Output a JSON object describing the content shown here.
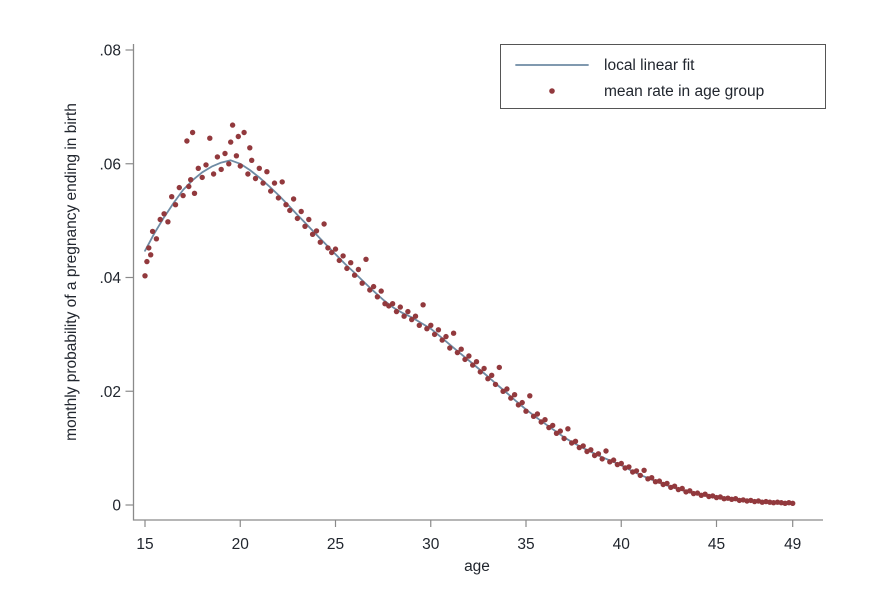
{
  "figure": {
    "background": "#ffffff",
    "axis_color": "#8a8a8a",
    "text_color": "#21262e",
    "legend_border_color": "#555555",
    "line_color": "#6e8ba4",
    "dot_color": "#92393d"
  },
  "chart_data": {
    "type": "scatter",
    "title": "",
    "xlabel": "age",
    "ylabel": "monthly probability of a pregnancy ending in birth",
    "xlim": [
      15,
      49
    ],
    "ylim": [
      0,
      0.08
    ],
    "x_ticks": [
      15,
      20,
      25,
      30,
      35,
      40,
      45,
      49
    ],
    "y_ticks": [
      0,
      0.02,
      0.04,
      0.06,
      0.08
    ],
    "y_tick_labels": [
      "0",
      ".02",
      ".04",
      ".06",
      ".08"
    ],
    "grid": "off",
    "legend_position": "top-right",
    "series": [
      {
        "name": "local linear fit",
        "type": "line",
        "color": "#6e8ba4",
        "points": [
          [
            15,
            0.0447
          ],
          [
            15.5,
            0.0478
          ],
          [
            16,
            0.0506
          ],
          [
            16.5,
            0.0531
          ],
          [
            17,
            0.0554
          ],
          [
            17.5,
            0.0571
          ],
          [
            18,
            0.0585
          ],
          [
            18.5,
            0.0595
          ],
          [
            19,
            0.0602
          ],
          [
            19.5,
            0.0606
          ],
          [
            20,
            0.06
          ],
          [
            20.5,
            0.0589
          ],
          [
            21,
            0.0576
          ],
          [
            21.5,
            0.0561
          ],
          [
            22,
            0.0545
          ],
          [
            22.5,
            0.0528
          ],
          [
            23,
            0.051
          ],
          [
            23.5,
            0.0493
          ],
          [
            24,
            0.0475
          ],
          [
            24.5,
            0.0458
          ],
          [
            25,
            0.0441
          ],
          [
            25.5,
            0.0424
          ],
          [
            26,
            0.0408
          ],
          [
            26.5,
            0.0392
          ],
          [
            27,
            0.0376
          ],
          [
            27.5,
            0.0361
          ],
          [
            28,
            0.0348
          ],
          [
            28.5,
            0.0338
          ],
          [
            29,
            0.033
          ],
          [
            29.5,
            0.032
          ],
          [
            30,
            0.031
          ],
          [
            30.5,
            0.0296
          ],
          [
            31,
            0.0282
          ],
          [
            31.5,
            0.0268
          ],
          [
            32,
            0.0254
          ],
          [
            32.5,
            0.024
          ],
          [
            33,
            0.0226
          ],
          [
            33.5,
            0.0211
          ],
          [
            34,
            0.0197
          ],
          [
            34.5,
            0.0182
          ],
          [
            35,
            0.0168
          ],
          [
            35.5,
            0.0155
          ],
          [
            36,
            0.0143
          ],
          [
            36.5,
            0.0131
          ],
          [
            37,
            0.0119
          ],
          [
            37.5,
            0.0109
          ],
          [
            38,
            0.01
          ],
          [
            38.5,
            0.0092
          ],
          [
            39,
            0.0084
          ],
          [
            39.5,
            0.0077
          ],
          [
            40,
            0.007
          ],
          [
            40.5,
            0.0061
          ],
          [
            41,
            0.0053
          ],
          [
            41.5,
            0.0046
          ],
          [
            42,
            0.0039
          ],
          [
            42.5,
            0.0033
          ],
          [
            43,
            0.0028
          ],
          [
            43.5,
            0.0023
          ],
          [
            44,
            0.0019
          ],
          [
            44.5,
            0.0016
          ],
          [
            45,
            0.0013
          ],
          [
            45.5,
            0.0011
          ],
          [
            46,
            0.0009
          ],
          [
            46.5,
            0.0007
          ],
          [
            47,
            0.0006
          ],
          [
            47.5,
            0.0005
          ],
          [
            48,
            0.0004
          ],
          [
            48.5,
            0.0003
          ],
          [
            49,
            0.0003
          ]
        ]
      },
      {
        "name": "mean rate in age group",
        "type": "scatter",
        "color": "#92393d",
        "points": [
          [
            15.0,
            0.0403
          ],
          [
            15.1,
            0.0428
          ],
          [
            15.2,
            0.0452
          ],
          [
            15.3,
            0.044
          ],
          [
            15.4,
            0.0481
          ],
          [
            15.6,
            0.0468
          ],
          [
            15.8,
            0.0502
          ],
          [
            16.0,
            0.0512
          ],
          [
            16.2,
            0.0498
          ],
          [
            16.4,
            0.0542
          ],
          [
            16.6,
            0.0528
          ],
          [
            16.8,
            0.0558
          ],
          [
            17.0,
            0.0544
          ],
          [
            17.2,
            0.064
          ],
          [
            17.3,
            0.056
          ],
          [
            17.4,
            0.0572
          ],
          [
            17.5,
            0.0655
          ],
          [
            17.6,
            0.0548
          ],
          [
            17.8,
            0.0592
          ],
          [
            18.0,
            0.0576
          ],
          [
            18.2,
            0.0598
          ],
          [
            18.4,
            0.0645
          ],
          [
            18.6,
            0.0582
          ],
          [
            18.8,
            0.0612
          ],
          [
            19.0,
            0.059
          ],
          [
            19.2,
            0.0618
          ],
          [
            19.4,
            0.06
          ],
          [
            19.5,
            0.0638
          ],
          [
            19.6,
            0.0668
          ],
          [
            19.8,
            0.0614
          ],
          [
            19.9,
            0.0648
          ],
          [
            20.0,
            0.0596
          ],
          [
            20.2,
            0.0655
          ],
          [
            20.4,
            0.0582
          ],
          [
            20.5,
            0.0628
          ],
          [
            20.6,
            0.0606
          ],
          [
            20.8,
            0.0574
          ],
          [
            21.0,
            0.0592
          ],
          [
            21.2,
            0.0566
          ],
          [
            21.4,
            0.0586
          ],
          [
            21.6,
            0.0552
          ],
          [
            21.8,
            0.0566
          ],
          [
            22.0,
            0.054
          ],
          [
            22.2,
            0.0568
          ],
          [
            22.4,
            0.0528
          ],
          [
            22.6,
            0.0518
          ],
          [
            22.8,
            0.0538
          ],
          [
            23.0,
            0.0504
          ],
          [
            23.2,
            0.0516
          ],
          [
            23.4,
            0.049
          ],
          [
            23.6,
            0.0502
          ],
          [
            23.8,
            0.0476
          ],
          [
            24.0,
            0.0482
          ],
          [
            24.2,
            0.0462
          ],
          [
            24.4,
            0.0494
          ],
          [
            24.6,
            0.0452
          ],
          [
            24.8,
            0.0444
          ],
          [
            25.0,
            0.045
          ],
          [
            25.2,
            0.043
          ],
          [
            25.4,
            0.0438
          ],
          [
            25.6,
            0.0416
          ],
          [
            25.8,
            0.0426
          ],
          [
            26.0,
            0.0404
          ],
          [
            26.2,
            0.0414
          ],
          [
            26.4,
            0.039
          ],
          [
            26.6,
            0.0432
          ],
          [
            26.8,
            0.0378
          ],
          [
            27.0,
            0.0384
          ],
          [
            27.2,
            0.0366
          ],
          [
            27.4,
            0.0376
          ],
          [
            27.6,
            0.0354
          ],
          [
            27.8,
            0.035
          ],
          [
            28.0,
            0.0354
          ],
          [
            28.2,
            0.034
          ],
          [
            28.4,
            0.0348
          ],
          [
            28.6,
            0.0332
          ],
          [
            28.8,
            0.034
          ],
          [
            29.0,
            0.0326
          ],
          [
            29.2,
            0.0332
          ],
          [
            29.4,
            0.0316
          ],
          [
            29.6,
            0.0352
          ],
          [
            29.8,
            0.031
          ],
          [
            30.0,
            0.0316
          ],
          [
            30.2,
            0.03
          ],
          [
            30.4,
            0.0308
          ],
          [
            30.6,
            0.029
          ],
          [
            30.8,
            0.0296
          ],
          [
            31.0,
            0.0276
          ],
          [
            31.2,
            0.0302
          ],
          [
            31.4,
            0.0268
          ],
          [
            31.6,
            0.0274
          ],
          [
            31.8,
            0.0256
          ],
          [
            32.0,
            0.0262
          ],
          [
            32.2,
            0.0246
          ],
          [
            32.4,
            0.0252
          ],
          [
            32.6,
            0.0234
          ],
          [
            32.8,
            0.024
          ],
          [
            33.0,
            0.0222
          ],
          [
            33.2,
            0.0228
          ],
          [
            33.4,
            0.0212
          ],
          [
            33.6,
            0.0242
          ],
          [
            33.8,
            0.02
          ],
          [
            34.0,
            0.0204
          ],
          [
            34.2,
            0.0188
          ],
          [
            34.4,
            0.0194
          ],
          [
            34.6,
            0.0176
          ],
          [
            34.8,
            0.018
          ],
          [
            35.0,
            0.0165
          ],
          [
            35.2,
            0.0192
          ],
          [
            35.4,
            0.0156
          ],
          [
            35.6,
            0.016
          ],
          [
            35.8,
            0.0146
          ],
          [
            36.0,
            0.015
          ],
          [
            36.2,
            0.0136
          ],
          [
            36.4,
            0.014
          ],
          [
            36.6,
            0.0126
          ],
          [
            36.8,
            0.013
          ],
          [
            37.0,
            0.0117
          ],
          [
            37.2,
            0.0134
          ],
          [
            37.4,
            0.0109
          ],
          [
            37.6,
            0.0112
          ],
          [
            37.8,
            0.0101
          ],
          [
            38.0,
            0.0104
          ],
          [
            38.2,
            0.0094
          ],
          [
            38.4,
            0.0097
          ],
          [
            38.6,
            0.0087
          ],
          [
            38.8,
            0.009
          ],
          [
            39.0,
            0.0081
          ],
          [
            39.2,
            0.0095
          ],
          [
            39.4,
            0.0076
          ],
          [
            39.6,
            0.0079
          ],
          [
            39.8,
            0.0071
          ],
          [
            40.0,
            0.0073
          ],
          [
            40.2,
            0.0065
          ],
          [
            40.4,
            0.0067
          ],
          [
            40.6,
            0.0058
          ],
          [
            40.8,
            0.006
          ],
          [
            41.0,
            0.0052
          ],
          [
            41.2,
            0.0061
          ],
          [
            41.4,
            0.0046
          ],
          [
            41.6,
            0.0048
          ],
          [
            41.8,
            0.0041
          ],
          [
            42.0,
            0.0042
          ],
          [
            42.2,
            0.0036
          ],
          [
            42.4,
            0.0038
          ],
          [
            42.6,
            0.0031
          ],
          [
            42.8,
            0.0033
          ],
          [
            43.0,
            0.0027
          ],
          [
            43.2,
            0.0029
          ],
          [
            43.4,
            0.0023
          ],
          [
            43.6,
            0.0025
          ],
          [
            43.8,
            0.002
          ],
          [
            44.0,
            0.0021
          ],
          [
            44.2,
            0.0017
          ],
          [
            44.4,
            0.0019
          ],
          [
            44.6,
            0.0015
          ],
          [
            44.8,
            0.0016
          ],
          [
            45.0,
            0.0013
          ],
          [
            45.2,
            0.0014
          ],
          [
            45.4,
            0.0011
          ],
          [
            45.6,
            0.0012
          ],
          [
            45.8,
            0.001
          ],
          [
            46.0,
            0.0011
          ],
          [
            46.2,
            0.0008
          ],
          [
            46.4,
            0.0009
          ],
          [
            46.6,
            0.0007
          ],
          [
            46.8,
            0.0008
          ],
          [
            47.0,
            0.0006
          ],
          [
            47.2,
            0.0007
          ],
          [
            47.4,
            0.0005
          ],
          [
            47.6,
            0.0006
          ],
          [
            47.8,
            0.0005
          ],
          [
            48.0,
            0.0004
          ],
          [
            48.2,
            0.0005
          ],
          [
            48.4,
            0.0004
          ],
          [
            48.6,
            0.0003
          ],
          [
            48.8,
            0.0004
          ],
          [
            49.0,
            0.0003
          ]
        ]
      }
    ]
  }
}
